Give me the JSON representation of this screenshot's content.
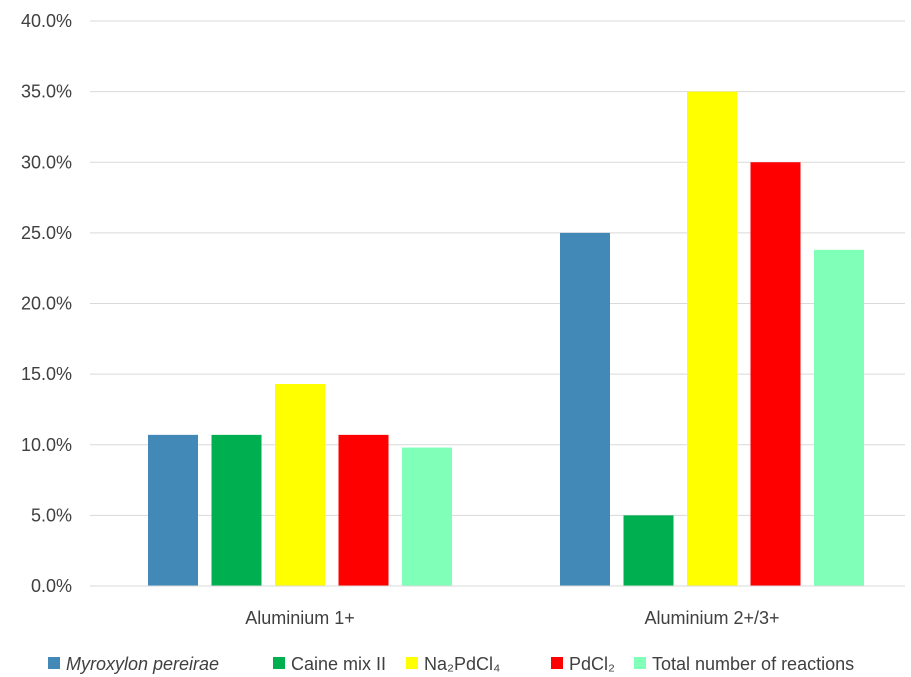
{
  "chart_data": {
    "type": "bar",
    "categories": [
      "Aluminium 1+",
      "Aluminium 2+/3+"
    ],
    "series": [
      {
        "name": "Myroxylon pereirae",
        "values": [
          10.7,
          25.0
        ],
        "color": "#4389B8",
        "italic": true
      },
      {
        "name": "Caine mix II",
        "values": [
          10.7,
          5.0
        ],
        "color": "#00B050",
        "italic": false
      },
      {
        "name": "Na₂PdCl₄",
        "values": [
          14.3,
          35.0
        ],
        "color": "#FFFF00",
        "italic": false
      },
      {
        "name": "PdCl₂",
        "values": [
          10.7,
          30.0
        ],
        "color": "#FF0000",
        "italic": false
      },
      {
        "name": "Total number of reactions",
        "values": [
          9.8,
          23.8
        ],
        "color": "#7FFFB8",
        "italic": false
      }
    ],
    "yticks": [
      "0.0%",
      "5.0%",
      "10.0%",
      "15.0%",
      "20.0%",
      "25.0%",
      "30.0%",
      "35.0%",
      "40.0%"
    ],
    "ylim": [
      0,
      40
    ],
    "grid": true,
    "legend_position": "bottom",
    "title": "",
    "xlabel": "",
    "ylabel": ""
  }
}
